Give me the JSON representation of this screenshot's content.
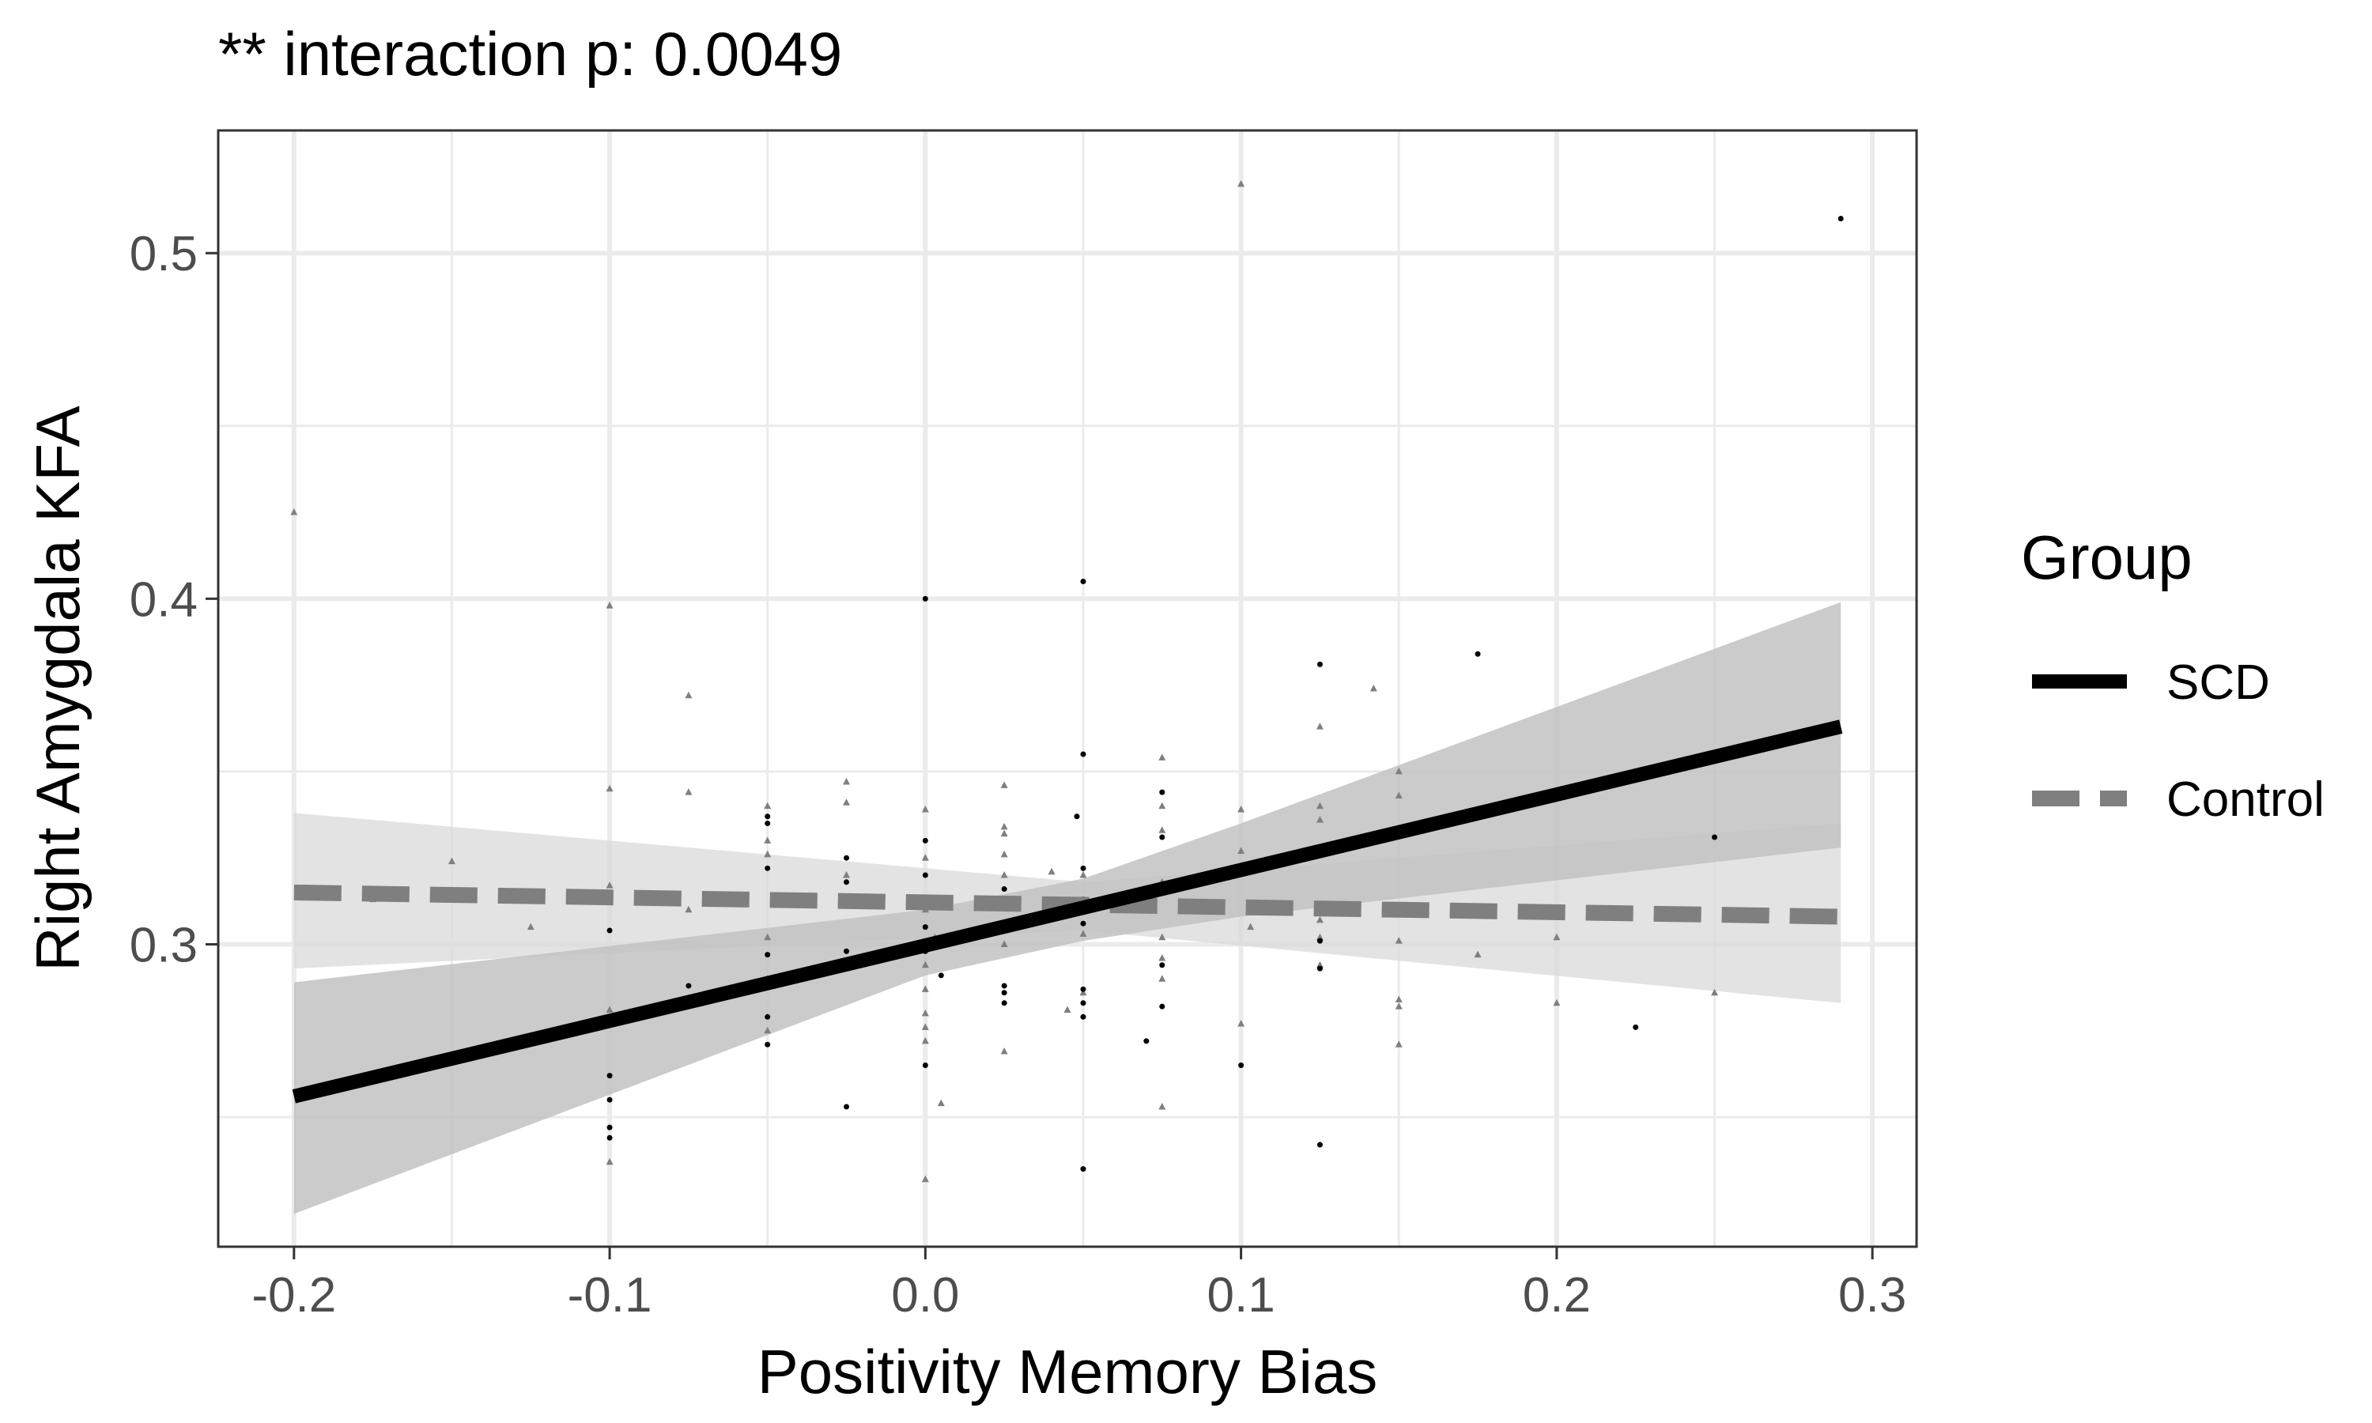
{
  "chart_data": {
    "type": "scatter",
    "title": "** interaction p: 0.0049",
    "xlabel": "Positivity Memory Bias",
    "ylabel": "Right Amygdala KFA",
    "xlim": [
      -0.224,
      0.314
    ],
    "ylim": [
      0.2125,
      0.5355
    ],
    "x_ticks": [
      -0.2,
      -0.1,
      0.0,
      0.1,
      0.2,
      0.3
    ],
    "x_tick_labels": [
      "-0.2",
      "-0.1",
      "0.0",
      "0.1",
      "0.2",
      "0.3"
    ],
    "y_ticks": [
      0.3,
      0.4,
      0.5
    ],
    "y_tick_labels": [
      "0.3",
      "0.4",
      "0.5"
    ],
    "grid": true,
    "legend": {
      "title": "Group",
      "position": "right",
      "entries": [
        "SCD",
        "Control"
      ]
    },
    "colors": {
      "SCD": "#000000",
      "Control": "#7f7f7f",
      "SCD_band": "#c2c2c2",
      "Control_band": "#dadada",
      "grid": "#ebebeb"
    },
    "series": [
      {
        "name": "SCD",
        "fit": {
          "x": [
            -0.2,
            0.29
          ],
          "y": [
            0.256,
            0.363
          ]
        },
        "ci_lower": {
          "x": [
            -0.2,
            0.0,
            0.05,
            0.1,
            0.29
          ],
          "y": [
            0.222,
            0.291,
            0.301,
            0.308,
            0.328
          ]
        },
        "ci_upper": {
          "x": [
            -0.2,
            0.0,
            0.05,
            0.1,
            0.29
          ],
          "y": [
            0.289,
            0.31,
            0.319,
            0.335,
            0.399
          ]
        },
        "points": [
          [
            -0.1,
            0.304
          ],
          [
            -0.1,
            0.278
          ],
          [
            -0.1,
            0.262
          ],
          [
            -0.1,
            0.255
          ],
          [
            -0.1,
            0.247
          ],
          [
            -0.1,
            0.244
          ],
          [
            -0.088,
            0.313
          ],
          [
            -0.075,
            0.288
          ],
          [
            -0.05,
            0.337
          ],
          [
            -0.05,
            0.335
          ],
          [
            -0.05,
            0.322
          ],
          [
            -0.05,
            0.297
          ],
          [
            -0.05,
            0.279
          ],
          [
            -0.05,
            0.271
          ],
          [
            -0.025,
            0.325
          ],
          [
            -0.025,
            0.318
          ],
          [
            -0.025,
            0.312
          ],
          [
            -0.025,
            0.298
          ],
          [
            -0.025,
            0.253
          ],
          [
            0.0,
            0.4
          ],
          [
            0.0,
            0.33
          ],
          [
            0.0,
            0.32
          ],
          [
            0.0,
            0.305
          ],
          [
            0.0,
            0.298
          ],
          [
            0.0,
            0.265
          ],
          [
            0.005,
            0.291
          ],
          [
            0.025,
            0.316
          ],
          [
            0.025,
            0.306
          ],
          [
            0.025,
            0.288
          ],
          [
            0.025,
            0.286
          ],
          [
            0.025,
            0.283
          ],
          [
            0.048,
            0.337
          ],
          [
            0.05,
            0.405
          ],
          [
            0.05,
            0.355
          ],
          [
            0.05,
            0.322
          ],
          [
            0.05,
            0.313
          ],
          [
            0.05,
            0.306
          ],
          [
            0.05,
            0.287
          ],
          [
            0.05,
            0.283
          ],
          [
            0.05,
            0.279
          ],
          [
            0.05,
            0.235
          ],
          [
            0.07,
            0.272
          ],
          [
            0.075,
            0.344
          ],
          [
            0.075,
            0.331
          ],
          [
            0.075,
            0.315
          ],
          [
            0.075,
            0.294
          ],
          [
            0.075,
            0.282
          ],
          [
            0.1,
            0.265
          ],
          [
            0.125,
            0.381
          ],
          [
            0.125,
            0.301
          ],
          [
            0.125,
            0.293
          ],
          [
            0.125,
            0.242
          ],
          [
            0.175,
            0.384
          ],
          [
            0.225,
            0.276
          ],
          [
            0.25,
            0.331
          ],
          [
            0.29,
            0.51
          ]
        ]
      },
      {
        "name": "Control",
        "fit": {
          "x": [
            -0.2,
            0.29
          ],
          "y": [
            0.315,
            0.308
          ]
        },
        "ci_lower": {
          "x": [
            -0.2,
            0.05,
            0.29
          ],
          "y": [
            0.293,
            0.304,
            0.283
          ]
        },
        "ci_upper": {
          "x": [
            -0.2,
            0.05,
            0.29
          ],
          "y": [
            0.338,
            0.318,
            0.335
          ]
        },
        "points": [
          [
            -0.2,
            0.425
          ],
          [
            -0.175,
            0.313
          ],
          [
            -0.15,
            0.324
          ],
          [
            -0.125,
            0.305
          ],
          [
            -0.1,
            0.398
          ],
          [
            -0.1,
            0.345
          ],
          [
            -0.1,
            0.317
          ],
          [
            -0.1,
            0.313
          ],
          [
            -0.1,
            0.281
          ],
          [
            -0.1,
            0.237
          ],
          [
            -0.075,
            0.372
          ],
          [
            -0.075,
            0.344
          ],
          [
            -0.075,
            0.31
          ],
          [
            -0.05,
            0.34
          ],
          [
            -0.05,
            0.33
          ],
          [
            -0.05,
            0.326
          ],
          [
            -0.05,
            0.302
          ],
          [
            -0.05,
            0.29
          ],
          [
            -0.05,
            0.275
          ],
          [
            -0.025,
            0.347
          ],
          [
            -0.025,
            0.341
          ],
          [
            -0.025,
            0.32
          ],
          [
            -0.025,
            0.293
          ],
          [
            0.0,
            0.339
          ],
          [
            0.0,
            0.325
          ],
          [
            0.0,
            0.31
          ],
          [
            0.0,
            0.3
          ],
          [
            0.0,
            0.294
          ],
          [
            0.0,
            0.287
          ],
          [
            0.0,
            0.28
          ],
          [
            0.0,
            0.276
          ],
          [
            0.0,
            0.272
          ],
          [
            0.0,
            0.232
          ],
          [
            0.003,
            0.302
          ],
          [
            0.005,
            0.254
          ],
          [
            0.025,
            0.346
          ],
          [
            0.025,
            0.334
          ],
          [
            0.025,
            0.332
          ],
          [
            0.025,
            0.326
          ],
          [
            0.025,
            0.32
          ],
          [
            0.025,
            0.3
          ],
          [
            0.025,
            0.269
          ],
          [
            0.04,
            0.321
          ],
          [
            0.045,
            0.281
          ],
          [
            0.05,
            0.32
          ],
          [
            0.05,
            0.303
          ],
          [
            0.05,
            0.286
          ],
          [
            0.075,
            0.354
          ],
          [
            0.075,
            0.34
          ],
          [
            0.075,
            0.333
          ],
          [
            0.075,
            0.318
          ],
          [
            0.075,
            0.302
          ],
          [
            0.075,
            0.296
          ],
          [
            0.075,
            0.29
          ],
          [
            0.075,
            0.253
          ],
          [
            0.1,
            0.339
          ],
          [
            0.1,
            0.327
          ],
          [
            0.1,
            0.321
          ],
          [
            0.1,
            0.277
          ],
          [
            0.1,
            0.52
          ],
          [
            0.103,
            0.305
          ],
          [
            0.125,
            0.363
          ],
          [
            0.125,
            0.34
          ],
          [
            0.125,
            0.336
          ],
          [
            0.125,
            0.307
          ],
          [
            0.125,
            0.302
          ],
          [
            0.125,
            0.294
          ],
          [
            0.142,
            0.374
          ],
          [
            0.15,
            0.35
          ],
          [
            0.15,
            0.343
          ],
          [
            0.15,
            0.333
          ],
          [
            0.15,
            0.301
          ],
          [
            0.15,
            0.284
          ],
          [
            0.15,
            0.282
          ],
          [
            0.15,
            0.271
          ],
          [
            0.175,
            0.297
          ],
          [
            0.2,
            0.302
          ],
          [
            0.2,
            0.283
          ],
          [
            0.25,
            0.286
          ]
        ]
      }
    ]
  }
}
